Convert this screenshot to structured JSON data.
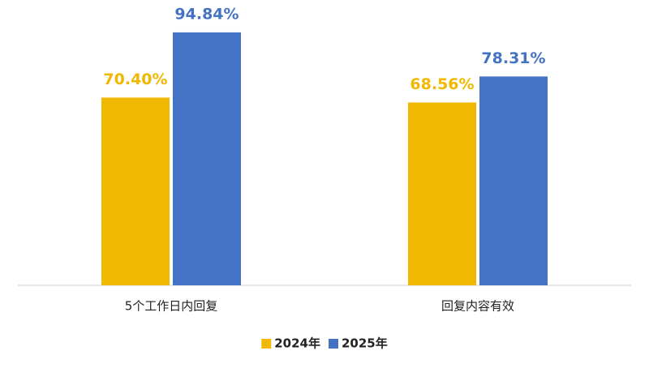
{
  "chart_data": {
    "type": "bar",
    "categories": [
      "5个工作日内回复",
      "回复内容有效"
    ],
    "series": [
      {
        "name": "2024年",
        "color": "#f0b800",
        "values": [
          70.4,
          68.56
        ],
        "value_labels": [
          "70.40%",
          "68.56%"
        ]
      },
      {
        "name": "2025年",
        "color": "#4472c4",
        "values": [
          94.84,
          78.31
        ],
        "value_labels": [
          "94.84%",
          "78.31%"
        ]
      }
    ],
    "ylim": [
      0,
      100
    ],
    "legend": "bottom"
  }
}
